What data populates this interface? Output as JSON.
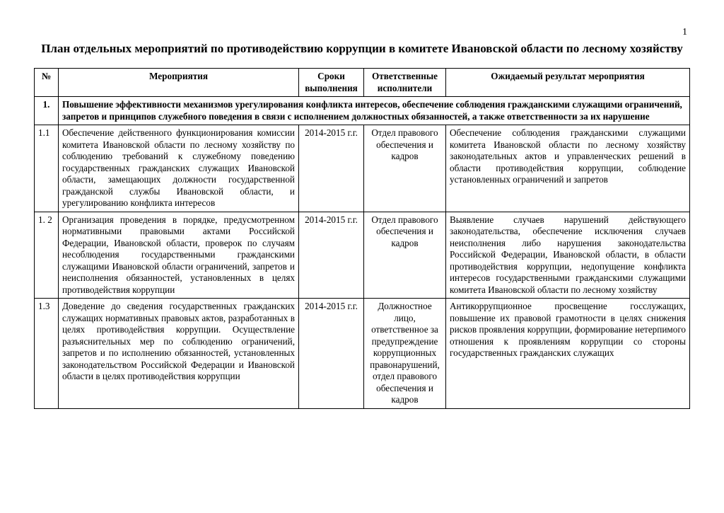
{
  "page_number": "1",
  "title": "План отдельных мероприятий  по противодействию коррупции в комитете Ивановской области по лесному хозяйству",
  "columns": {
    "num": "№",
    "event": "Мероприятия",
    "time": "Сроки выполнения",
    "executors": "Ответственные исполнители",
    "result": "Ожидаемый результат мероприятия"
  },
  "section": {
    "num": "1.",
    "text": "Повышение эффективности механизмов урегулирования конфликта интересов, обеспечение соблюдения гражданскими служащими ограничений, запретов и принципов служебного поведения в связи с исполнением должностных обязанностей, а также ответственности за их нарушение"
  },
  "rows": [
    {
      "num": "1.1",
      "event": "Обеспечение действенного функционирования комиссии комитета Ивановской области по лесному хозяйству по соблюдению требований к служебному поведению государственных гражданских служащих Ивановской области, замещающих должности государственной гражданской службы Ивановской области, и урегулированию конфликта интересов",
      "time": "2014-2015 г.г.",
      "executors": "Отдел правового обеспечения и кадров",
      "result": "Обеспечение соблюдения гражданскими служащими комитета Ивановской области по лесному хозяйству законодательных актов и управленческих решений в области противодействия коррупции, соблюдение установленных ограничений и запретов"
    },
    {
      "num": "1. 2",
      "event": "Организация проведения в порядке, предусмотренном нормативными правовыми актами Российской Федерации, Ивановской области, проверок по случаям несоблюдения государственными гражданскими служащими Ивановской области ограничений, запретов и неисполнения обязанностей, установленных в целях противодействия коррупции",
      "time": "2014-2015 г.г.",
      "executors": "Отдел правового обеспечения и кадров",
      "result": "Выявление случаев нарушений действующего законодательства, обеспечение исключения случаев неисполнения либо нарушения законодательства Российской Федерации, Ивановской области, в области противодействия коррупции, недопущение конфликта интересов государственными гражданскими служащими комитета Ивановской области по лесному хозяйству"
    },
    {
      "num": "1.3",
      "event": "Доведение до сведения государственных гражданских служащих нормативных правовых актов, разработанных в целях противодействия коррупции. Осуществление разъяснительных мер по соблюдению ограничений, запретов и по исполнению обязанностей, установленных законодательством Российской Федерации и Ивановской области в целях противодействия коррупции",
      "time": "2014-2015 г.г.",
      "executors": "Должностное лицо, ответственное за предупреждение коррупционных правонарушений, отдел правового обеспечения и кадров",
      "result": "Антикоррупционное просвещение госслужащих, повышение их правовой грамотности в целях снижения рисков проявления коррупции, формирование нетерпимого отношения к проявлениям коррупции со стороны государственных гражданских служащих"
    }
  ]
}
